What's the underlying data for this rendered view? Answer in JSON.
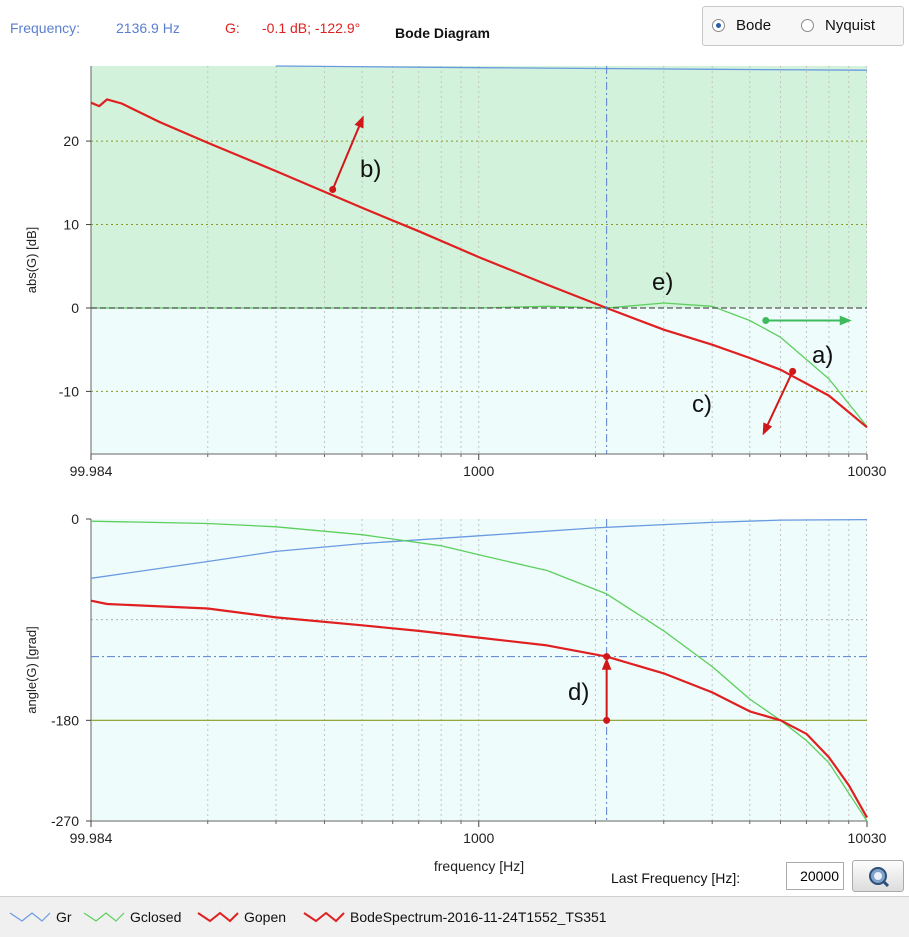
{
  "header": {
    "frequency_label": "Frequency:",
    "frequency_value": "2136.9 Hz",
    "g_label": "G:",
    "g_value": "-0.1 dB; -122.9°",
    "title": "Bode Diagram"
  },
  "view_mode": {
    "options": [
      {
        "label": "Bode",
        "selected": true
      },
      {
        "label": "Nyquist",
        "selected": false
      }
    ]
  },
  "controls": {
    "last_frequency_label": "Last Frequency [Hz]:",
    "last_frequency_value": "20000"
  },
  "legend": [
    {
      "name": "Gr",
      "color": "#6a9ae0"
    },
    {
      "name": "Gclosed",
      "color": "#5ccf5c"
    },
    {
      "name": "Gopen",
      "color": "#e02020"
    },
    {
      "name": "BodeSpectrum-2016-11-24T1552_TS351",
      "color": "#e02020"
    }
  ],
  "colors": {
    "gr": "#6a9ae0",
    "gclosed": "#5ccf5c",
    "gopen": "#e02020",
    "green_fill": "#d3f2dc",
    "blue_fill": "#eefcfc",
    "marker_arrow": "#d01818",
    "green_arrow": "#3dbb5c"
  },
  "chart_data": [
    {
      "type": "line",
      "title": "",
      "xlabel": "",
      "ylabel": "abs(G) [dB]",
      "xscale": "log",
      "xlim": [
        99.984,
        10030
      ],
      "ylim": [
        -17.5,
        29
      ],
      "x_tick_labels": [
        "99.984",
        "1000",
        "10030"
      ],
      "y_ticks": [
        20,
        10,
        0,
        -10
      ],
      "y_tick_labels": [
        "20",
        "10",
        "0",
        "-10"
      ],
      "grid": true,
      "legend_placement": "bottom",
      "series": [
        {
          "name": "Gr",
          "x": [
            300,
            1000,
            2000,
            4000,
            10030
          ],
          "y": [
            29,
            28.8,
            28.7,
            28.6,
            28.5
          ]
        },
        {
          "name": "Gclosed",
          "x": [
            99.984,
            500,
            1000,
            1500,
            2137,
            3000,
            4000,
            5000,
            6000,
            8000,
            10030
          ],
          "y": [
            0,
            0,
            0,
            0.2,
            0,
            0.6,
            0.2,
            -1.5,
            -3.5,
            -8.5,
            -14.2
          ]
        },
        {
          "name": "Gopen",
          "x": [
            99.984,
            105,
            110,
            120,
            150,
            200,
            300,
            500,
            700,
            1000,
            1500,
            2137,
            3000,
            4000,
            5000,
            6000,
            8000,
            10030
          ],
          "y": [
            24.6,
            24.2,
            25,
            24.5,
            22.3,
            19.8,
            16.4,
            12,
            9.2,
            6.1,
            2.8,
            0,
            -2.6,
            -4.4,
            -6.0,
            -7.4,
            -10.5,
            -14.3
          ]
        }
      ],
      "annotations": [
        {
          "label": "a)",
          "x": 5500,
          "y": -1.5
        },
        {
          "label": "b)",
          "x": 420,
          "y": 14
        },
        {
          "label": "c)",
          "x": 6450,
          "y": -7.5
        },
        {
          "label": "d)",
          "x": 2137,
          "y": -180
        },
        {
          "label": "e)",
          "x": 2800,
          "y": 3
        }
      ]
    },
    {
      "type": "line",
      "title": "",
      "xlabel": "frequency [Hz]",
      "ylabel": "angle(G) [grad]",
      "xscale": "log",
      "xlim": [
        99.984,
        10030
      ],
      "ylim": [
        -270,
        0
      ],
      "x_tick_labels": [
        "99.984",
        "1000",
        "10030"
      ],
      "y_ticks": [
        0,
        -180,
        -270
      ],
      "y_tick_labels": [
        "0",
        "-180",
        "-270"
      ],
      "grid": true,
      "series": [
        {
          "name": "Gr",
          "x": [
            99.984,
            200,
            300,
            500,
            1000,
            2000,
            3000,
            4000,
            6000,
            10030
          ],
          "y": [
            -53,
            -38,
            -29,
            -22,
            -15,
            -8,
            -5,
            -3,
            -1,
            -0.5
          ]
        },
        {
          "name": "Gclosed",
          "x": [
            99.984,
            200,
            300,
            500,
            800,
            1000,
            1500,
            2137,
            3000,
            4000,
            5000,
            6000,
            7000,
            8000,
            10030
          ],
          "y": [
            -2,
            -4,
            -7,
            -14,
            -24,
            -32,
            -46,
            -67,
            -100,
            -132,
            -161,
            -180,
            -198,
            -218,
            -270
          ]
        },
        {
          "name": "Gopen",
          "x": [
            99.984,
            110,
            200,
            300,
            500,
            700,
            1000,
            1500,
            2137,
            3000,
            4000,
            5000,
            6000,
            7000,
            8000,
            9000,
            10030
          ],
          "y": [
            -73,
            -76,
            -80,
            -88,
            -95,
            -100,
            -106,
            -113,
            -123,
            -138,
            -155,
            -172,
            -180,
            -192,
            -213,
            -238,
            -267
          ]
        }
      ],
      "reference_lines": [
        {
          "orientation": "horizontal",
          "y": -180
        },
        {
          "orientation": "horizontal",
          "y": -123
        },
        {
          "orientation": "vertical",
          "x": 2137
        }
      ]
    }
  ]
}
